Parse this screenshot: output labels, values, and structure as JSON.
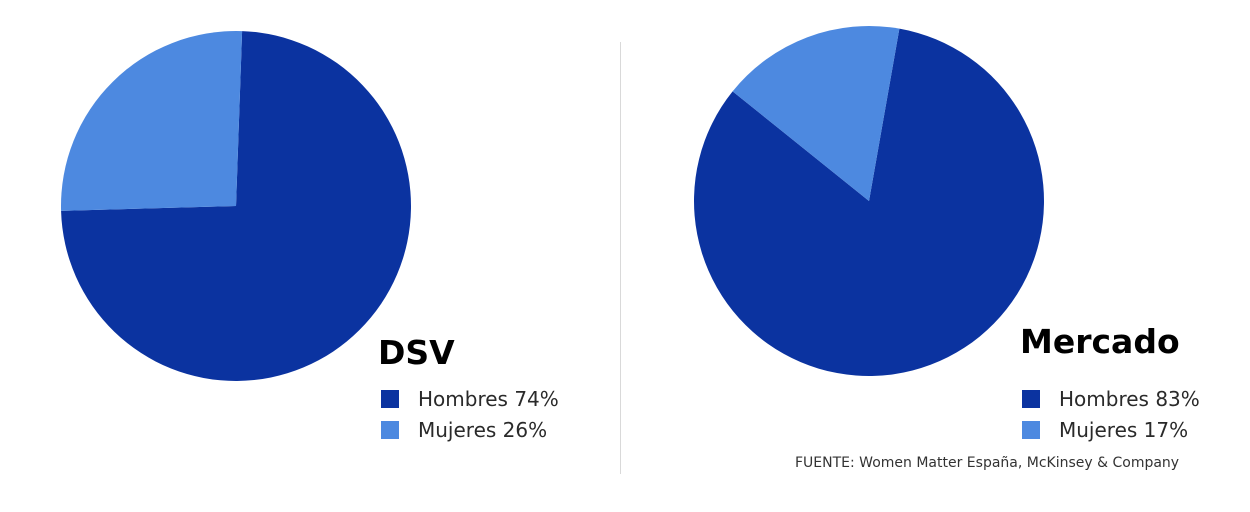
{
  "chart_data": [
    {
      "type": "pie",
      "title": "DSV",
      "categories": [
        "Hombres",
        "Mujeres"
      ],
      "values": [
        74,
        26
      ],
      "labels": [
        "Hombres 74%",
        "Mujeres 26%"
      ],
      "start_angle_deg": -88,
      "legend_position": "bottom-right",
      "colors": [
        "#0b33a0",
        "#4d89e0"
      ]
    },
    {
      "type": "pie",
      "title": "Mercado",
      "categories": [
        "Hombres",
        "Mujeres"
      ],
      "values": [
        83,
        17
      ],
      "labels": [
        "Hombres 83%",
        "Mujeres 17%"
      ],
      "start_angle_deg": -80,
      "legend_position": "bottom-right",
      "colors": [
        "#0b33a0",
        "#4d89e0"
      ]
    }
  ],
  "source": "FUENTE: Women Matter España, McKinsey & Company",
  "colors": {
    "hombres": "#0b33a0",
    "mujeres": "#4d89e0",
    "divider": "#d9d9d9"
  }
}
